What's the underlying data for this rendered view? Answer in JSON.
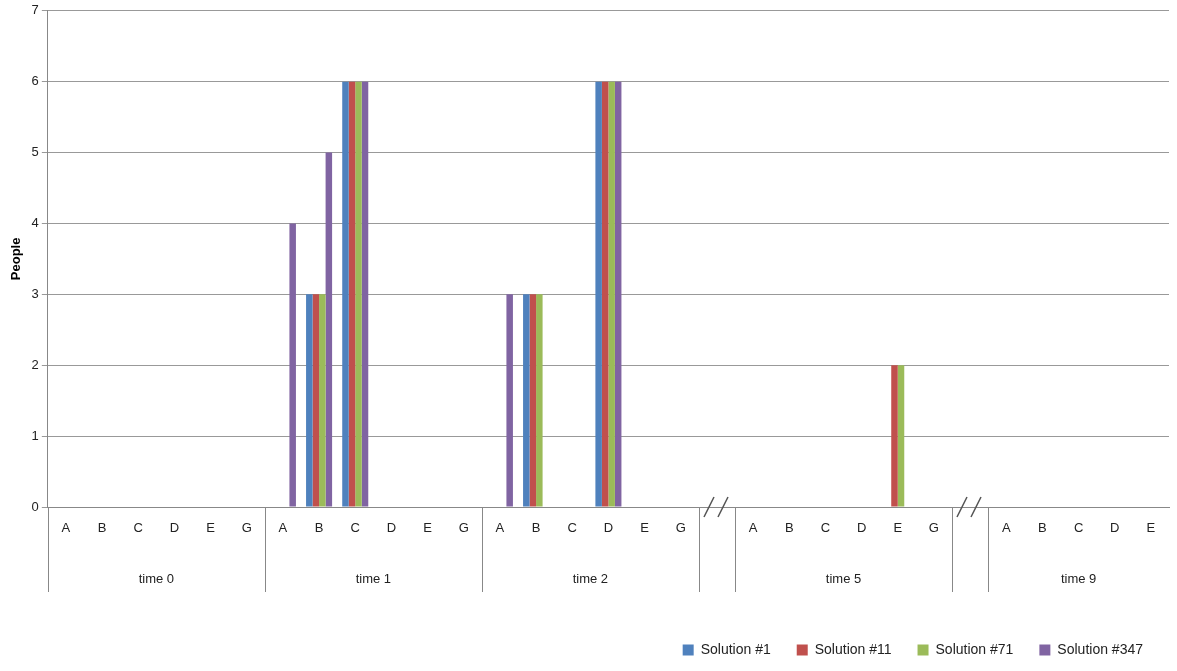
{
  "chart_data": {
    "type": "bar",
    "ylabel": "People",
    "categories": [
      "A",
      "B",
      "C",
      "D",
      "E",
      "G",
      "A",
      "B",
      "C",
      "D",
      "E",
      "G",
      "A",
      "B",
      "C",
      "D",
      "E",
      "G",
      null,
      "A",
      "B",
      "C",
      "D",
      "E",
      "G",
      null,
      "A",
      "B",
      "C",
      "D",
      "E"
    ],
    "series": [
      {
        "name": "Solution #1",
        "color": "#4f81bd",
        "values": [
          0,
          0,
          0,
          0,
          0,
          0,
          0,
          3,
          6,
          0,
          0,
          0,
          0,
          3,
          0,
          6,
          0,
          0,
          null,
          0,
          0,
          0,
          0,
          0,
          0,
          null,
          0,
          0,
          0,
          0,
          0
        ]
      },
      {
        "name": "Solution #11",
        "color": "#c0504d",
        "values": [
          0,
          0,
          0,
          0,
          0,
          0,
          0,
          3,
          6,
          0,
          0,
          0,
          0,
          3,
          0,
          6,
          0,
          0,
          null,
          0,
          0,
          0,
          0,
          2,
          0,
          null,
          0,
          0,
          0,
          0,
          0
        ]
      },
      {
        "name": "Solution #71",
        "color": "#9bbb59",
        "values": [
          0,
          0,
          0,
          0,
          0,
          0,
          0,
          3,
          6,
          0,
          0,
          0,
          0,
          3,
          0,
          6,
          0,
          0,
          null,
          0,
          0,
          0,
          0,
          2,
          0,
          null,
          0,
          0,
          0,
          0,
          0
        ]
      },
      {
        "name": "Solution #347",
        "color": "#8064a2",
        "values": [
          0,
          0,
          0,
          0,
          0,
          0,
          4,
          5,
          6,
          0,
          0,
          0,
          3,
          0,
          0,
          6,
          0,
          0,
          null,
          0,
          0,
          0,
          0,
          0,
          0,
          null,
          0,
          0,
          0,
          0,
          0
        ]
      }
    ],
    "ylim": [
      0,
      7
    ],
    "yticks": [
      0,
      1,
      2,
      3,
      4,
      5,
      6,
      7
    ],
    "grid": "y",
    "legend": "bottom right",
    "annotations": [
      "time 0",
      "time 1",
      "time 2",
      "time 5",
      "time 9"
    ]
  }
}
